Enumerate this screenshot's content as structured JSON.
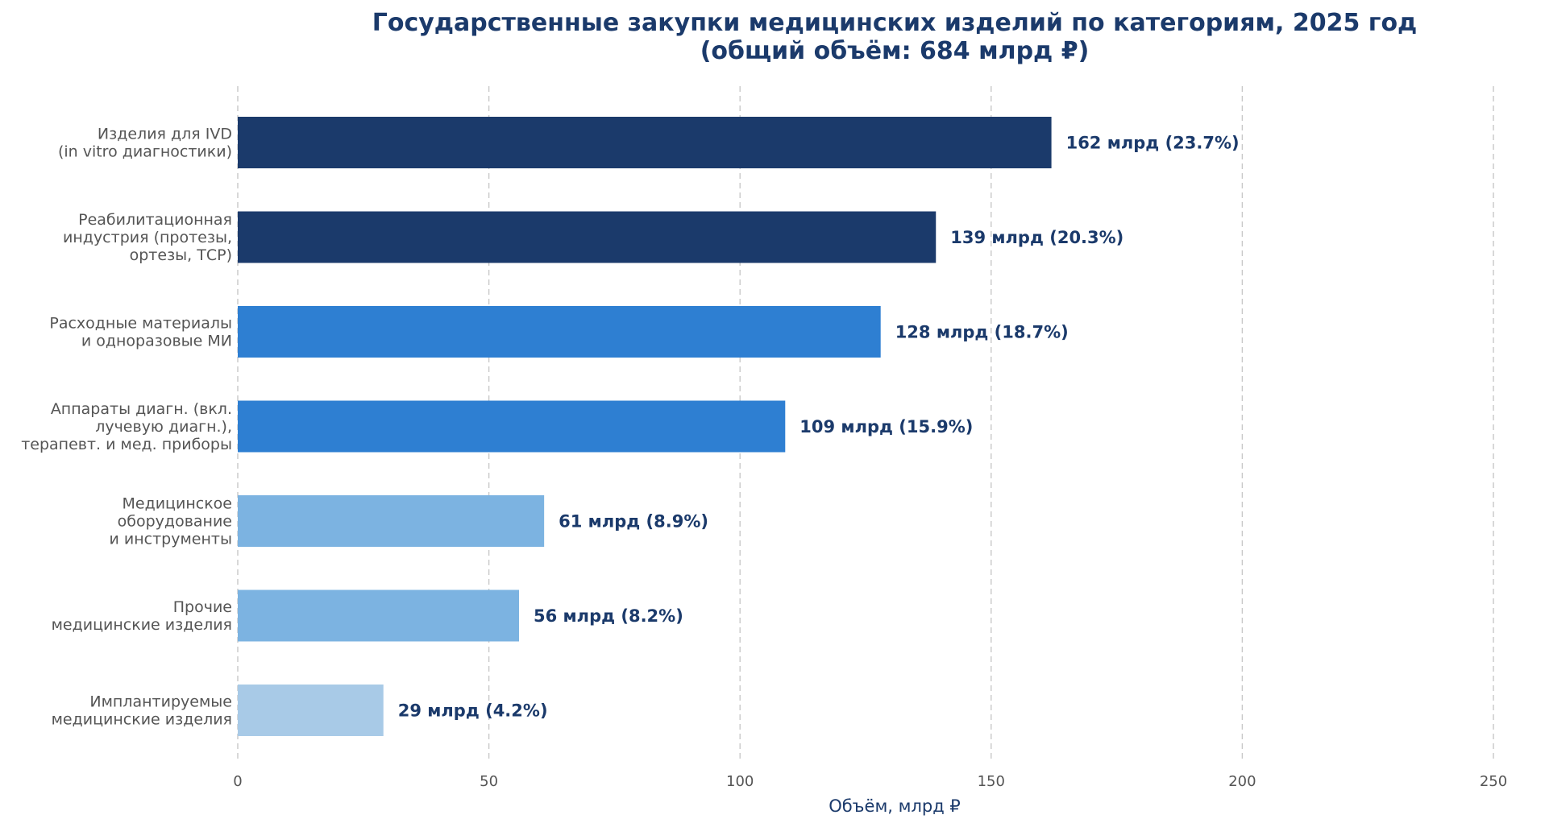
{
  "chart_data": {
    "type": "bar",
    "orientation": "horizontal",
    "title_lines": [
      "Государственные закупки медицинских изделий по категориям, 2025 год",
      "(общий объём: 684 млрд ₽)"
    ],
    "xlabel": "Объём, млрд ₽",
    "ylabel": "",
    "xlim": [
      0,
      250
    ],
    "xticks": [
      "0",
      "50",
      "100",
      "150",
      "200",
      "250"
    ],
    "grid": "vertical-dashed",
    "legend": "none",
    "categories": [
      {
        "lines": [
          "Изделия для IVD",
          "(in vitro диагностики)"
        ],
        "value": 162,
        "label": "162 млрд (23.7%)",
        "color": "#1b3a6b"
      },
      {
        "lines": [
          "Реабилитационная",
          "индустрия (протезы,",
          "ортезы, ТСР)"
        ],
        "value": 139,
        "label": "139 млрд (20.3%)",
        "color": "#1b3a6b"
      },
      {
        "lines": [
          "Расходные материалы",
          "и одноразовые МИ"
        ],
        "value": 128,
        "label": "128 млрд (18.7%)",
        "color": "#2e7fd2"
      },
      {
        "lines": [
          "Аппараты диагн. (вкл.",
          "лучевую диагн.),",
          "терапевт. и мед. приборы"
        ],
        "value": 109,
        "label": "109 млрд (15.9%)",
        "color": "#2e7fd2"
      },
      {
        "lines": [
          "Медицинское",
          "оборудование",
          "и инструменты"
        ],
        "value": 61,
        "label": "61 млрд (8.9%)",
        "color": "#7cb3e1"
      },
      {
        "lines": [
          "Прочие",
          "медицинские изделия"
        ],
        "value": 56,
        "label": "56 млрд (8.2%)",
        "color": "#7cb3e1"
      },
      {
        "lines": [
          "Имплантируемые",
          "медицинские изделия"
        ],
        "value": 29,
        "label": "29 млрд (4.2%)",
        "color": "#a8cae7"
      }
    ]
  }
}
